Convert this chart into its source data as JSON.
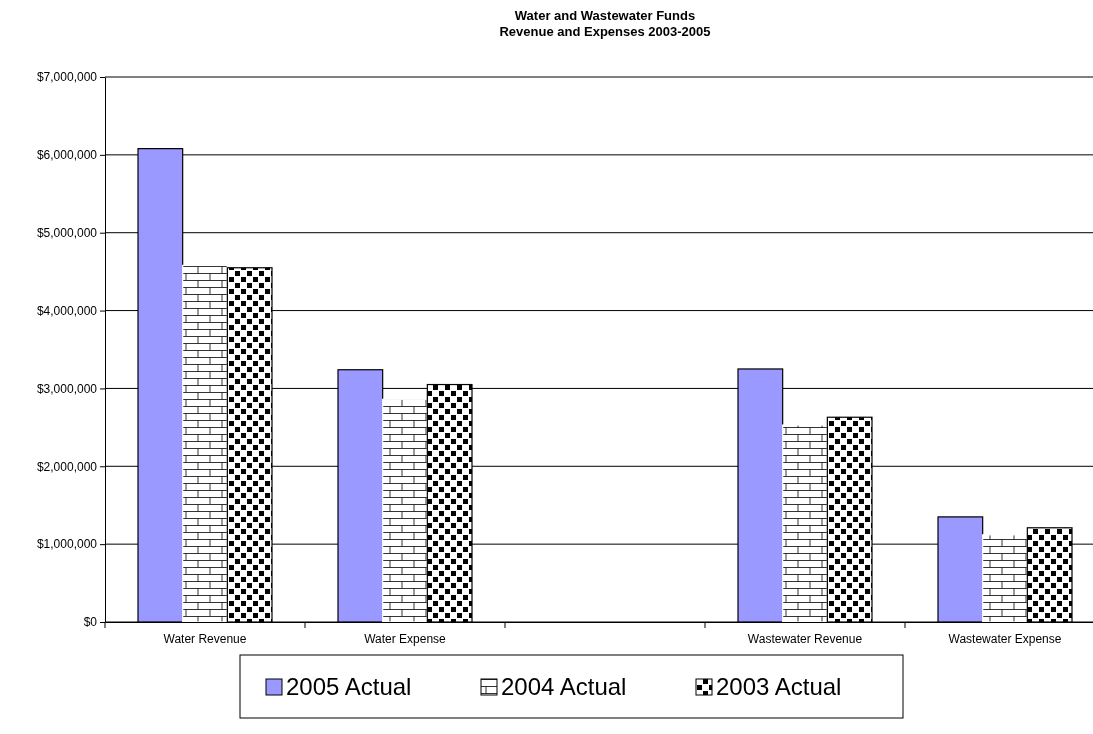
{
  "chart_data": {
    "type": "bar",
    "title": "Water and Wastewater Funds\nRevenue and Expenses 2003-2005",
    "categories": [
      "Water Revenue",
      "Water Expense",
      null,
      "Wastewater Revenue",
      "Wastewater Expense"
    ],
    "series": [
      {
        "name": "2005 Actual",
        "color": "#9999ff",
        "values": [
          6080000,
          3240000,
          null,
          3250000,
          1350000
        ]
      },
      {
        "name": "2004 Actual",
        "color": "#ffffff",
        "values": [
          4580000,
          2860000,
          null,
          2530000,
          1120000
        ]
      },
      {
        "name": "2003 Actual",
        "color": "#000000",
        "values": [
          4550000,
          3050000,
          null,
          2630000,
          1210000
        ]
      }
    ],
    "ylim": [
      0,
      7000000
    ],
    "yticks": [
      {
        "value": 0,
        "label": "$0"
      },
      {
        "value": 1000000,
        "label": "$1,000,000"
      },
      {
        "value": 2000000,
        "label": "$2,000,000"
      },
      {
        "value": 3000000,
        "label": "$3,000,000"
      },
      {
        "value": 4000000,
        "label": "$4,000,000"
      },
      {
        "value": 5000000,
        "label": "$5,000,000"
      },
      {
        "value": 6000000,
        "label": "$6,000,000"
      },
      {
        "value": 7000000,
        "label": "$7,000,000"
      }
    ],
    "grid": "y",
    "legend": "bottom"
  }
}
